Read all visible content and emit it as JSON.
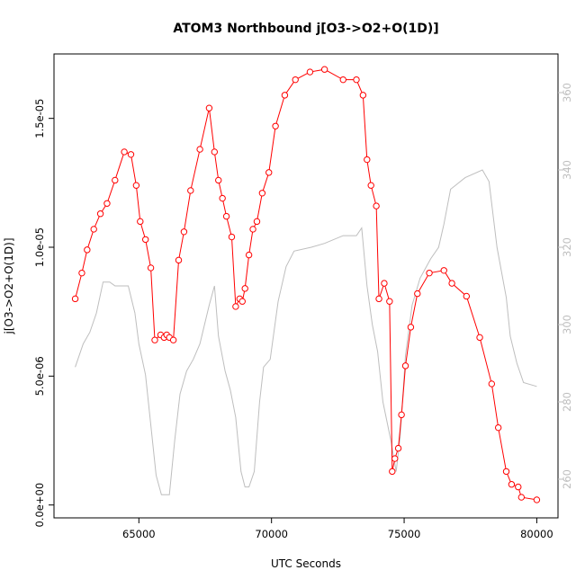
{
  "chart_data": {
    "type": "line",
    "title": "ATOM3 Northbound j[O3->O2+O(1D)]",
    "xlabel": "UTC Seconds",
    "ylabel": "j[O3->O2+O(1D)]",
    "xlim": [
      61800,
      80800
    ],
    "ylim": [
      -5e-07,
      1.75e-05
    ],
    "ylim_right": [
      250,
      370
    ],
    "x_ticks": [
      65000,
      70000,
      75000,
      80000
    ],
    "x_tick_labels": [
      "65000",
      "70000",
      "75000",
      "80000"
    ],
    "y_ticks": [
      0,
      5e-06,
      1e-05,
      1.5e-05
    ],
    "y_tick_labels": [
      "0.0e+00",
      "5.0e-06",
      "1.0e-05",
      "1.5e-05"
    ],
    "y_right_ticks": [
      260,
      280,
      300,
      320,
      340,
      360
    ],
    "y_right_tick_labels": [
      "260",
      "280",
      "300",
      "320",
      "340",
      "360"
    ],
    "grid": false,
    "colors": {
      "primary": "#ff0000",
      "secondary": "#bebebe",
      "right_axis": "#bdbdbd"
    },
    "series": [
      {
        "axis": "left",
        "style": "line-circles",
        "x": [
          62600,
          62850,
          63050,
          63300,
          63550,
          63800,
          64100,
          64450,
          64700,
          64900,
          65050,
          65250,
          65450,
          65600,
          65820,
          65950,
          66050,
          66150,
          66300,
          66500,
          66700,
          66950,
          67300,
          67650,
          67850,
          68000,
          68150,
          68300,
          68500,
          68650,
          68800,
          68900,
          69000,
          69150,
          69300,
          69450,
          69650,
          69900,
          70150,
          70500,
          70900,
          71450,
          72000,
          72700,
          73200,
          73450,
          73600,
          73750,
          73950,
          74050,
          74250,
          74450,
          74550,
          74650,
          74780,
          74900,
          75050,
          75250,
          75500,
          75950,
          76500,
          76800,
          77350,
          77850,
          78300,
          78550,
          78850,
          79050,
          79300,
          79420,
          80000
        ],
        "y": [
          8e-06,
          9e-06,
          9.9e-06,
          1.07e-05,
          1.13e-05,
          1.17e-05,
          1.26e-05,
          1.37e-05,
          1.36e-05,
          1.24e-05,
          1.1e-05,
          1.03e-05,
          9.2e-06,
          6.4e-06,
          6.6e-06,
          6.5e-06,
          6.6e-06,
          6.5e-06,
          6.4e-06,
          9.5e-06,
          1.06e-05,
          1.22e-05,
          1.38e-05,
          1.54e-05,
          1.37e-05,
          1.26e-05,
          1.19e-05,
          1.12e-05,
          1.04e-05,
          7.7e-06,
          8e-06,
          7.9e-06,
          8.4e-06,
          9.7e-06,
          1.07e-05,
          1.1e-05,
          1.21e-05,
          1.29e-05,
          1.47e-05,
          1.59e-05,
          1.65e-05,
          1.68e-05,
          1.69e-05,
          1.65e-05,
          1.65e-05,
          1.59e-05,
          1.34e-05,
          1.24e-05,
          1.16e-05,
          8e-06,
          8.6e-06,
          7.9e-06,
          1.3e-06,
          1.8e-06,
          2.2e-06,
          3.5e-06,
          5.4e-06,
          6.9e-06,
          8.2e-06,
          9e-06,
          9.1e-06,
          8.6e-06,
          8.1e-06,
          6.5e-06,
          4.7e-06,
          3e-06,
          1.3e-06,
          8e-07,
          7e-07,
          3e-07,
          2e-07
        ],
        "right_y": []
      },
      {
        "axis": "right",
        "style": "line",
        "x": [
          62600,
          62900,
          63150,
          63400,
          63650,
          63900,
          64100,
          64300,
          64600,
          64850,
          65000,
          65250,
          65450,
          65650,
          65850,
          66150,
          66350,
          66550,
          66800,
          67050,
          67300,
          67650,
          67850,
          68000,
          68250,
          68450,
          68650,
          68850,
          69000,
          69150,
          69350,
          69550,
          69700,
          69950,
          70250,
          70550,
          70850,
          71500,
          72000,
          72700,
          73200,
          73400,
          73600,
          73800,
          74000,
          74200,
          74500,
          74700,
          74850,
          75050,
          75300,
          75600,
          76000,
          76300,
          76500,
          76750,
          77300,
          77950,
          78200,
          78500,
          78850,
          79000,
          79250,
          79500,
          80000
        ],
        "y": [
          289,
          295,
          298,
          303,
          311,
          311,
          310,
          310,
          310,
          303,
          295,
          287,
          274,
          261,
          256,
          256,
          270,
          282,
          288,
          291,
          295,
          305,
          310,
          297,
          288,
          283,
          276,
          262,
          258,
          258,
          262,
          280,
          289,
          291,
          306,
          315,
          319,
          320,
          321,
          323,
          323,
          325,
          310,
          300,
          293,
          280,
          270,
          262,
          271,
          292,
          305,
          312,
          317,
          320,
          326,
          335,
          338,
          340,
          337,
          320,
          307,
          297,
          290,
          285,
          284
        ],
        "right_y": []
      }
    ]
  }
}
